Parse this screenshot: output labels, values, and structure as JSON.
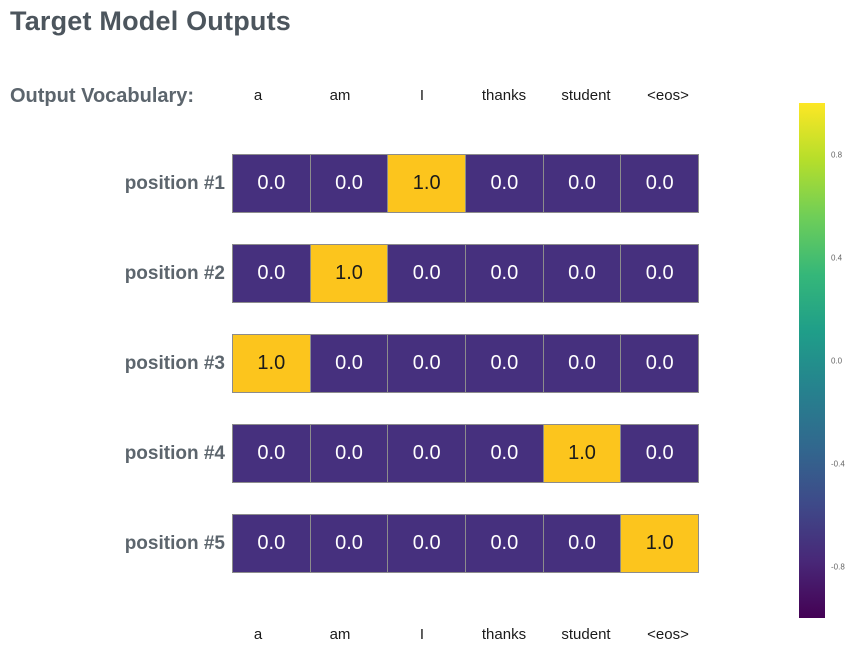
{
  "title": "Target Model Outputs",
  "vocab_label": "Output Vocabulary:",
  "chart_data": {
    "type": "heatmap",
    "columns": [
      "a",
      "am",
      "I",
      "thanks",
      "student",
      "<eos>"
    ],
    "row_labels": [
      "position #1",
      "position #2",
      "position #3",
      "position #4",
      "position #5"
    ],
    "values": [
      [
        0.0,
        0.0,
        1.0,
        0.0,
        0.0,
        0.0
      ],
      [
        0.0,
        1.0,
        0.0,
        0.0,
        0.0,
        0.0
      ],
      [
        1.0,
        0.0,
        0.0,
        0.0,
        0.0,
        0.0
      ],
      [
        0.0,
        0.0,
        0.0,
        0.0,
        1.0,
        0.0
      ],
      [
        0.0,
        0.0,
        0.0,
        0.0,
        0.0,
        1.0
      ]
    ],
    "value_decimals": 1,
    "legend_position": "right",
    "colorbar": {
      "min": -1.0,
      "max": 1.0,
      "ticks": [
        0.8,
        0.4,
        0.0,
        -0.4,
        -0.8
      ],
      "gradient_stops_bottom_to_top": [
        "#440154",
        "#482878",
        "#3e4a89",
        "#31688e",
        "#26828e",
        "#1f9e89",
        "#35b779",
        "#6ece58",
        "#b5de2b",
        "#fde725"
      ]
    }
  },
  "colors": {
    "cell_low": "#46307e",
    "cell_high": "#fcc51d",
    "cell_text_low": "#ffffff",
    "cell_text_high": "#1a1a1a",
    "cell_border": "#8c8c8c",
    "title_text": "#4c555d",
    "label_text": "#5c656d",
    "axis_text": "#1a1a1a",
    "colorbar_tick_text": "#666666"
  }
}
